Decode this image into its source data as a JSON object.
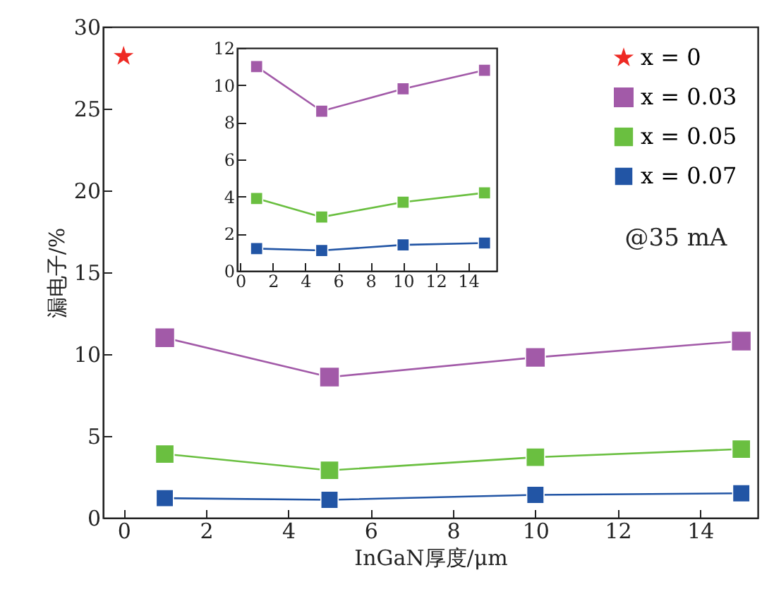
{
  "chart_data": [
    {
      "type": "line",
      "xlabel": "InGaN厚度/μm",
      "ylabel": "漏电子/%",
      "xlim": [
        -0.5,
        15.4
      ],
      "ylim": [
        0,
        30
      ],
      "xticks": [
        0,
        2,
        4,
        6,
        8,
        10,
        12,
        14
      ],
      "yticks": [
        0,
        5,
        10,
        15,
        20,
        25,
        30
      ],
      "grid": false,
      "legend": "top right",
      "annotations": [
        "@35 mA"
      ],
      "series": [
        {
          "name": "x = 0",
          "type": "scatter",
          "marker": "star",
          "color": "#ee2a24",
          "x": [
            0
          ],
          "values": [
            28.2
          ]
        },
        {
          "name": "x = 0.03",
          "marker": "square",
          "color": "#a25aa8",
          "x": [
            1,
            5,
            10,
            15
          ],
          "values": [
            11.0,
            8.6,
            9.8,
            10.8
          ]
        },
        {
          "name": "x = 0.05",
          "marker": "square",
          "color": "#6abf40",
          "x": [
            1,
            5,
            10,
            15
          ],
          "values": [
            3.9,
            2.9,
            3.7,
            4.2
          ]
        },
        {
          "name": "x = 0.07",
          "marker": "square",
          "color": "#2255a5",
          "x": [
            1,
            5,
            10,
            15
          ],
          "values": [
            1.2,
            1.1,
            1.4,
            1.5
          ]
        }
      ]
    },
    {
      "type": "line",
      "xlim": [
        -0.2,
        15.75
      ],
      "ylim": [
        0,
        12
      ],
      "xticks": [
        0,
        2,
        4,
        6,
        8,
        10,
        12,
        14
      ],
      "yticks": [
        0,
        2,
        4,
        6,
        8,
        10,
        12
      ],
      "grid": false,
      "legend": false,
      "marker": "square",
      "series": [
        {
          "color": "#a25aa8",
          "x": [
            1,
            5,
            10,
            15
          ],
          "values": [
            11.0,
            8.6,
            9.8,
            10.8
          ]
        },
        {
          "color": "#6abf40",
          "x": [
            1,
            5,
            10,
            15
          ],
          "values": [
            3.9,
            2.9,
            3.7,
            4.2
          ]
        },
        {
          "color": "#2255a5",
          "x": [
            1,
            5,
            10,
            15
          ],
          "values": [
            1.2,
            1.1,
            1.4,
            1.5
          ]
        }
      ]
    }
  ]
}
